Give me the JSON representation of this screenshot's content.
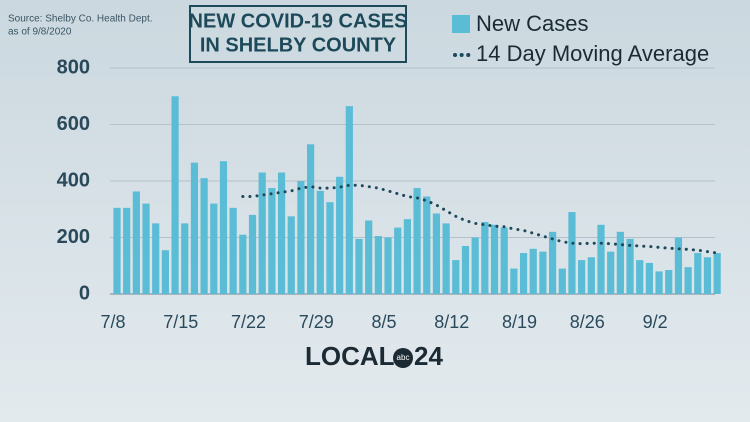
{
  "chart_data": {
    "type": "bar",
    "title": [
      "NEW COVID-19 CASES",
      "IN SHELBY COUNTY"
    ],
    "source": [
      "Source:  Shelby Co. Health Dept.",
      "as of 9/8/2020"
    ],
    "logo": {
      "left": "LOCAL",
      "badge": "abc",
      "right": "24"
    },
    "categories": [
      "7/8",
      null,
      null,
      null,
      null,
      null,
      null,
      "7/15",
      null,
      null,
      null,
      null,
      null,
      null,
      "7/22",
      null,
      null,
      null,
      null,
      null,
      null,
      "7/29",
      null,
      null,
      null,
      null,
      null,
      null,
      "8/5",
      null,
      null,
      null,
      null,
      null,
      null,
      "8/12",
      null,
      null,
      null,
      null,
      null,
      null,
      "8/19",
      null,
      null,
      null,
      null,
      null,
      null,
      "8/26",
      null,
      null,
      null,
      null,
      null,
      null,
      "9/2",
      null,
      null,
      null,
      null,
      null,
      null
    ],
    "series": [
      {
        "name": "New Cases",
        "color": "#5bbcd6",
        "type": "bar",
        "values": [
          305,
          305,
          363,
          320,
          250,
          155,
          700,
          250,
          465,
          410,
          320,
          470,
          305,
          210,
          280,
          430,
          375,
          430,
          275,
          400,
          530,
          365,
          325,
          415,
          665,
          195,
          260,
          205,
          200,
          235,
          265,
          375,
          345,
          285,
          250,
          120,
          170,
          200,
          255,
          245,
          235,
          90,
          145,
          160,
          150,
          220,
          90,
          290,
          120,
          130,
          245,
          150,
          220,
          195,
          120,
          110,
          80,
          85,
          200,
          95,
          145,
          130,
          145
        ]
      },
      {
        "name": "14 Day Moving Average",
        "color": "#1d4a5a",
        "type": "line",
        "values": [
          null,
          null,
          null,
          null,
          null,
          null,
          null,
          null,
          null,
          null,
          null,
          null,
          null,
          345,
          345,
          350,
          355,
          360,
          365,
          375,
          380,
          375,
          375,
          378,
          385,
          385,
          380,
          375,
          365,
          355,
          345,
          340,
          330,
          315,
          295,
          275,
          260,
          250,
          245,
          240,
          238,
          230,
          225,
          215,
          205,
          195,
          185,
          180,
          178,
          180,
          180,
          178,
          175,
          172,
          170,
          168,
          165,
          162,
          160,
          158,
          155,
          150,
          145
        ]
      }
    ],
    "ylim": [
      0,
      800
    ],
    "yticks": [
      0,
      200,
      400,
      600,
      800
    ],
    "grid": true
  }
}
